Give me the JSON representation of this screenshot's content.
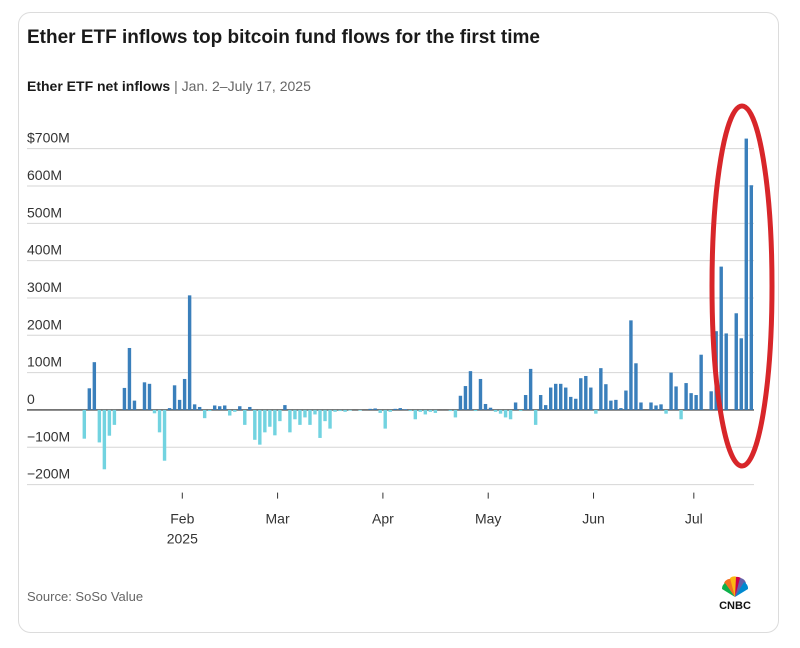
{
  "chart_data": {
    "type": "bar",
    "title": "Ether ETF inflows top bitcoin fund flows for the first time",
    "subtitle": "Ether ETF net inflows",
    "subtitle_note": "| Jan. 2–July 17, 2025",
    "source": "Source: SoSo Value",
    "logo": "CNBC",
    "x_sublabel": "2025",
    "categories": [
      null,
      null,
      null,
      null,
      null,
      null,
      null,
      null,
      null,
      null,
      null,
      null,
      null,
      null,
      null,
      null,
      null,
      null,
      null,
      null,
      "Feb",
      null,
      null,
      null,
      null,
      null,
      null,
      null,
      null,
      null,
      null,
      null,
      null,
      null,
      null,
      null,
      null,
      null,
      null,
      "Mar",
      null,
      null,
      null,
      null,
      null,
      null,
      null,
      null,
      null,
      null,
      null,
      null,
      null,
      null,
      null,
      null,
      null,
      null,
      null,
      null,
      "Apr",
      null,
      null,
      null,
      null,
      null,
      null,
      null,
      null,
      null,
      null,
      null,
      null,
      null,
      null,
      null,
      null,
      null,
      null,
      null,
      null,
      "May",
      null,
      null,
      null,
      null,
      null,
      null,
      null,
      null,
      null,
      null,
      null,
      null,
      null,
      null,
      null,
      null,
      null,
      null,
      null,
      null,
      "Jun",
      null,
      null,
      null,
      null,
      null,
      null,
      null,
      null,
      null,
      null,
      null,
      null,
      null,
      null,
      null,
      null,
      null,
      null,
      null,
      "Jul",
      null,
      null,
      null,
      null,
      null,
      null,
      null,
      null,
      null,
      null,
      null
    ],
    "values": [
      -77,
      58,
      128,
      -87,
      -159,
      -69,
      -40,
      0,
      59,
      166,
      25,
      0,
      74,
      70,
      -9,
      -60,
      -136,
      5,
      66,
      27,
      83,
      307,
      15,
      8,
      -22,
      -3,
      12,
      10,
      12,
      -15,
      -5,
      10,
      -40,
      8,
      -80,
      -93,
      -60,
      -45,
      -68,
      -30,
      13,
      -60,
      -25,
      -40,
      -20,
      -40,
      -12,
      -75,
      -30,
      -50,
      -5,
      -3,
      -5,
      -2,
      0,
      -2,
      0,
      3,
      4,
      -8,
      -50,
      -5,
      3,
      5,
      2,
      -3,
      -25,
      -5,
      -12,
      -5,
      -8,
      0,
      0,
      -3,
      -20,
      38,
      64,
      104,
      -3,
      83,
      16,
      6,
      -5,
      -10,
      -20,
      -25,
      20,
      -3,
      40,
      110,
      -40,
      40,
      13,
      60,
      70,
      70,
      60,
      35,
      30,
      85,
      91,
      60,
      -10,
      112,
      69,
      25,
      27,
      5,
      52,
      240,
      125,
      20,
      0,
      20,
      12,
      15,
      -10,
      100,
      63,
      -25,
      72,
      45,
      40,
      148,
      0,
      50,
      211,
      384,
      205,
      0,
      259,
      192,
      727,
      602
    ],
    "color": "#3a7fbb",
    "negative_color": "#72d3e0",
    "ylim": [
      -200,
      750
    ],
    "yticks": [
      {
        "value": -200,
        "label": "−200M"
      },
      {
        "value": -100,
        "label": "−100M"
      },
      0,
      {
        "value": 100,
        "label": "100M"
      },
      {
        "value": 200,
        "label": "200M"
      },
      {
        "value": 300,
        "label": "300M"
      },
      {
        "value": 400,
        "label": "400M"
      },
      {
        "value": 500,
        "label": "500M"
      },
      {
        "value": 600,
        "label": "600M"
      },
      {
        "value": 700,
        "label": "$700M"
      }
    ],
    "grid": true
  }
}
